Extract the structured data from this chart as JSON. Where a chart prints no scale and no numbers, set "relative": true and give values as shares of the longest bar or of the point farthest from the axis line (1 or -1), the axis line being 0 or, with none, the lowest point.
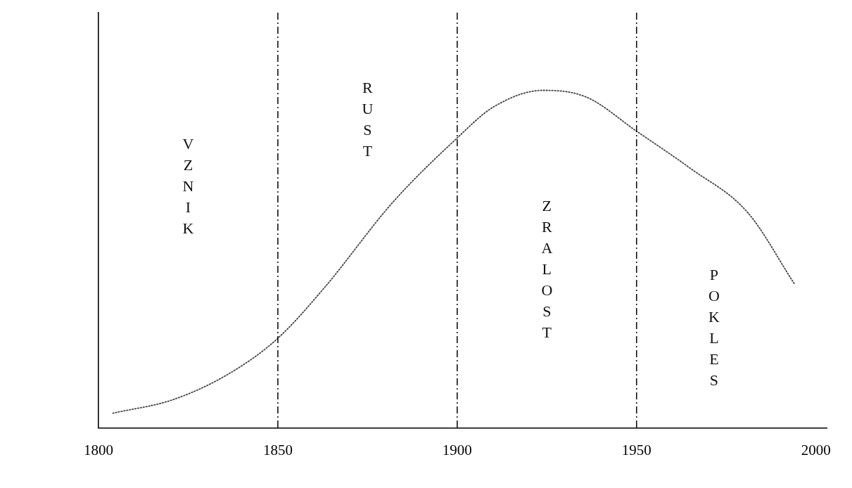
{
  "chart_data": {
    "type": "line",
    "relative": true,
    "x": [
      1804,
      1821,
      1837,
      1850,
      1863,
      1882,
      1900,
      1910,
      1924,
      1936,
      1950,
      1965,
      1981,
      1994
    ],
    "series": [
      {
        "color": "#444444",
        "values": [
          0.044,
          0.085,
          0.165,
          0.266,
          0.416,
          0.668,
          0.859,
          0.95,
          1.0,
          0.98,
          0.879,
          0.769,
          0.638,
          0.427
        ]
      }
    ],
    "xlim": [
      1800,
      2003
    ],
    "xticks": [
      1800,
      1850,
      1900,
      1950,
      2000
    ],
    "ref_lines": [
      {
        "axis": "x",
        "value": 1850,
        "line_style": "dashdot",
        "color": "#111111"
      },
      {
        "axis": "x",
        "value": 1900,
        "line_style": "dashdot",
        "color": "#111111"
      },
      {
        "axis": "x",
        "value": 1950,
        "line_style": "dashdot",
        "color": "#111111"
      }
    ],
    "annotations": [
      "VZNIK",
      "RUST",
      "ZRALOST",
      "POKLES"
    ],
    "line_style": "dotted",
    "marker": "none",
    "grid": false,
    "legend": false
  }
}
